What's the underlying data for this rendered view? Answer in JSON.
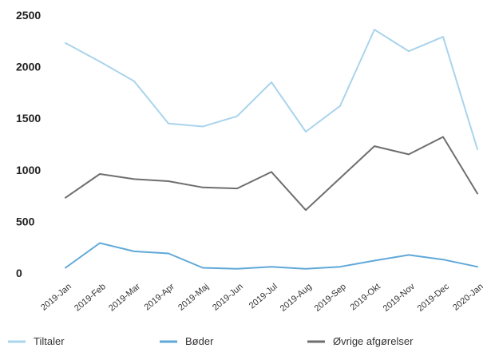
{
  "chart_data": {
    "type": "line",
    "x": [
      "2019-Jan",
      "2019-Feb",
      "2019-Mar",
      "2019-Apr",
      "2019-Maj",
      "2019-Jun",
      "2019-Jul",
      "2019-Aug",
      "2019-Sep",
      "2019-Okt",
      "2019-Nov",
      "2019-Dec",
      "2020-Jan"
    ],
    "series": [
      {
        "name": "Tiltaler",
        "color": "#a9d4ec",
        "values": [
          2230,
          2050,
          1860,
          1450,
          1420,
          1520,
          1850,
          1370,
          1620,
          2360,
          2150,
          2290,
          1200
        ]
      },
      {
        "name": "Bøder",
        "color": "#5fa8d8",
        "values": [
          50,
          290,
          210,
          190,
          50,
          40,
          60,
          40,
          60,
          120,
          175,
          130,
          60
        ]
      },
      {
        "name": "Øvrige afgørelser",
        "color": "#6e6e6e",
        "values": [
          730,
          960,
          910,
          890,
          830,
          820,
          980,
          610,
          920,
          1230,
          1150,
          1320,
          770
        ]
      }
    ],
    "yticks": [
      "0",
      "500",
      "1000",
      "1500",
      "2000",
      "2500"
    ],
    "ylim": [
      0,
      2500
    ],
    "grid": false,
    "legend_position": "bottom"
  }
}
